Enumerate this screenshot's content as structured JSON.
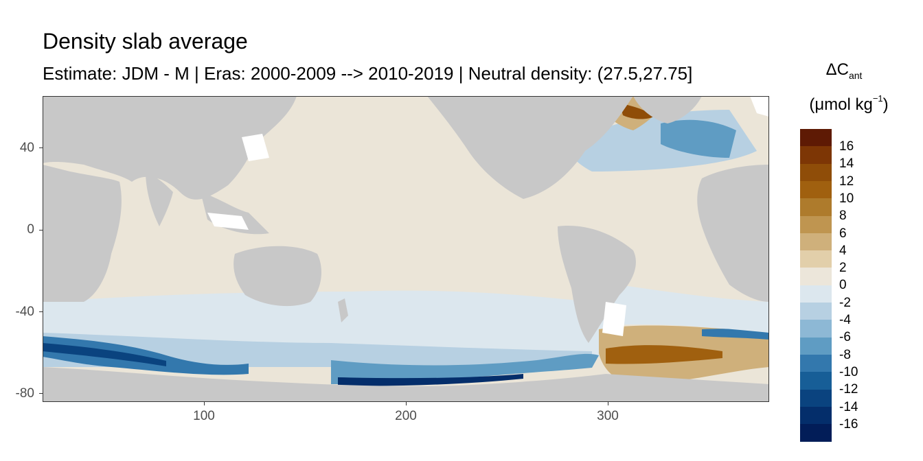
{
  "title": "Density slab average",
  "subtitle": "Estimate: JDM - M | Eras: 2000-2009 --> 2010-2019 | Neutral density: (27.5,27.75]",
  "legend": {
    "title_line1": "ΔC",
    "title_line1_sub": "ant",
    "title_line2_pre": "(μmol kg",
    "title_line2_sup": "−1",
    "title_line2_post": ")",
    "labels": [
      "16",
      "14",
      "12",
      "10",
      "8",
      "6",
      "4",
      "2",
      "0",
      "-2",
      "-4",
      "-6",
      "-8",
      "-10",
      "-12",
      "-14",
      "-16"
    ],
    "colors": [
      "#5e1a04",
      "#7d3605",
      "#8f4d08",
      "#a0600f",
      "#ae7b2c",
      "#bf9550",
      "#cfb07b",
      "#e2cfaa",
      "#ece6da",
      "#dce7ee",
      "#b7d0e2",
      "#8db8d5",
      "#5f9cc3",
      "#3378ad",
      "#175e97",
      "#0a437f",
      "#042e6b",
      "#021d58"
    ]
  },
  "axes": {
    "x_ticks": [
      "100",
      "200",
      "300"
    ],
    "y_ticks": [
      "40",
      "0",
      "-40",
      "-80"
    ],
    "xlim": [
      20,
      380
    ],
    "ylim": [
      -85,
      65
    ]
  },
  "map_colors": {
    "land": "#c8c8c8",
    "ocean_base": "#ebe5d8",
    "panel_border": "#333333"
  }
}
